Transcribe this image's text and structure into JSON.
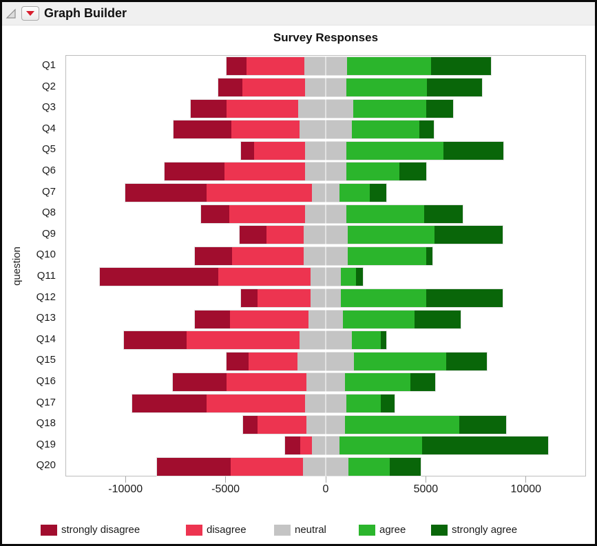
{
  "window": {
    "title": "Graph Builder"
  },
  "chart": {
    "title": "Survey Responses",
    "y_axis_title": "question"
  },
  "colors": {
    "strongly_disagree": "#a10d2e",
    "disagree": "#ed3450",
    "neutral": "#c4c4c4",
    "agree": "#2bb52c",
    "strongly_agree": "#096609",
    "header_bg": "#f0f0f0",
    "plot_border": "#bdbdbd",
    "menu_triangle": "#d81e2e"
  },
  "chart_data": {
    "type": "bar",
    "subtype": "diverging-stacked-horizontal",
    "title": "Survey Responses",
    "xlabel": "",
    "ylabel": "question",
    "xlim": [
      -13000,
      13000
    ],
    "x_ticks": [
      -10000,
      -5000,
      0,
      5000,
      10000
    ],
    "grid": "zero-line only",
    "legend_position": "bottom",
    "note": "neutral segment is centered on 0; disagree categories extend left, agree categories extend right",
    "categories": [
      "Q1",
      "Q2",
      "Q3",
      "Q4",
      "Q5",
      "Q6",
      "Q7",
      "Q8",
      "Q9",
      "Q10",
      "Q11",
      "Q12",
      "Q13",
      "Q14",
      "Q15",
      "Q16",
      "Q17",
      "Q18",
      "Q19",
      "Q20"
    ],
    "series": [
      {
        "name": "strongly disagree",
        "color": "#a10d2e",
        "values": [
          1000,
          1200,
          1800,
          2900,
          650,
          3000,
          4050,
          1400,
          1350,
          1850,
          5950,
          800,
          1750,
          3150,
          1100,
          2700,
          3750,
          700,
          750,
          3700
        ]
      },
      {
        "name": "disagree",
        "color": "#ed3450",
        "values": [
          2900,
          3150,
          3600,
          3400,
          2550,
          4050,
          5300,
          3800,
          1850,
          3600,
          4600,
          2650,
          3950,
          5650,
          2450,
          4000,
          4900,
          2450,
          600,
          3600
        ]
      },
      {
        "name": "neutral",
        "color": "#c4c4c4",
        "values": [
          2150,
          2050,
          2750,
          2650,
          2100,
          2050,
          1350,
          2050,
          2200,
          2200,
          1550,
          1550,
          1700,
          2600,
          2850,
          1900,
          2100,
          1950,
          1350,
          2300
        ]
      },
      {
        "name": "agree",
        "color": "#2bb52c",
        "values": [
          4200,
          4050,
          3650,
          3350,
          4850,
          2650,
          1550,
          3900,
          4350,
          3950,
          750,
          4250,
          3600,
          1450,
          4600,
          3300,
          1700,
          5700,
          4150,
          2050
        ]
      },
      {
        "name": "strongly agree",
        "color": "#096609",
        "values": [
          3000,
          2750,
          1350,
          750,
          3000,
          1350,
          800,
          1950,
          3400,
          300,
          350,
          3850,
          2300,
          300,
          2050,
          1250,
          700,
          2350,
          6300,
          1550
        ]
      }
    ]
  }
}
